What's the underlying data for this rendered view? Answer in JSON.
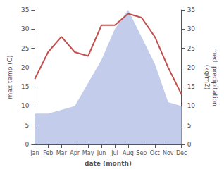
{
  "chart_data": {
    "type": "line",
    "categories": [
      "Jan",
      "Feb",
      "Mar",
      "Apr",
      "May",
      "Jun",
      "Jul",
      "Aug",
      "Sep",
      "Oct",
      "Nov",
      "Dec"
    ],
    "series": [
      {
        "type": "area",
        "axis": "y2",
        "color": "#b8c4e8",
        "values": [
          8,
          8,
          9,
          10,
          16,
          22,
          30,
          35,
          28,
          21,
          11,
          10
        ]
      },
      {
        "type": "line",
        "color": "#c0504d",
        "values": [
          17,
          24,
          28,
          24,
          23,
          31,
          31,
          34,
          33,
          28,
          20,
          13
        ]
      }
    ],
    "xlabel": "date (month)",
    "ylabel": "max temp (C)",
    "y2label": "med. precipitation\n(kg/m2)",
    "ylim": [
      0,
      35
    ],
    "yticks": [
      0,
      5,
      10,
      15,
      20,
      25,
      30,
      35
    ],
    "y2lim": [
      0,
      35
    ],
    "y2ticks": [
      0,
      5,
      10,
      15,
      20,
      25,
      30,
      35
    ],
    "grid": false
  }
}
